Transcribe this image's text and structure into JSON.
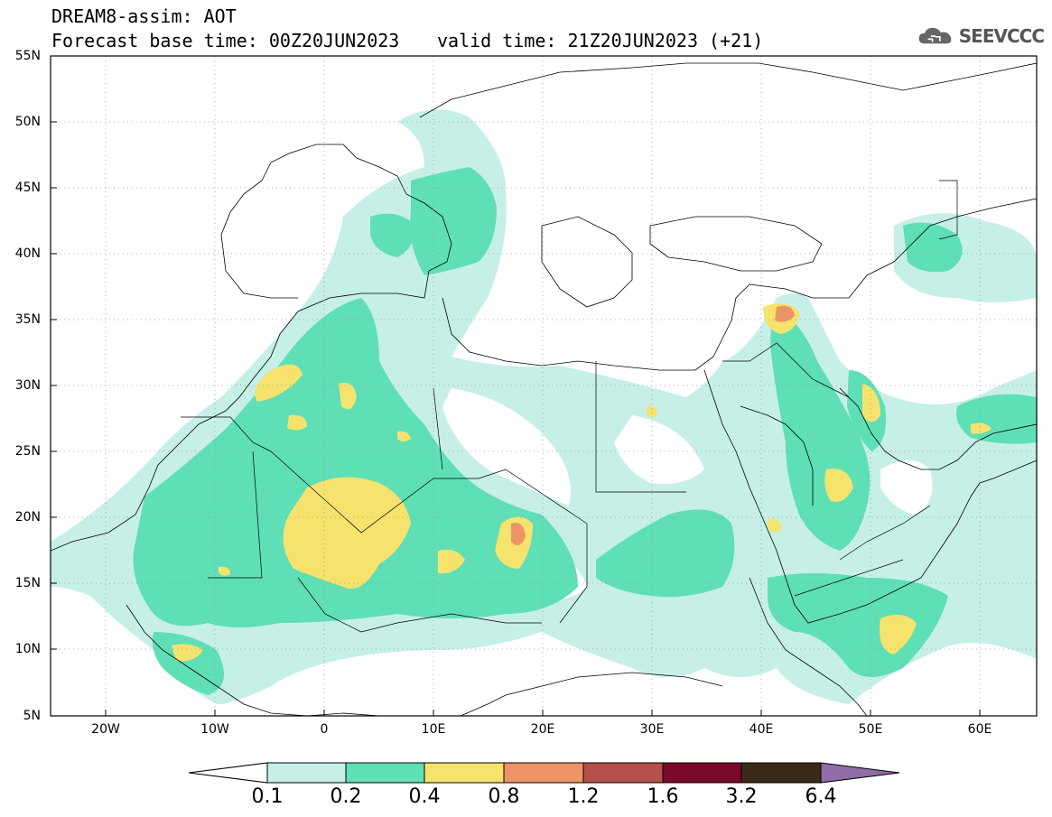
{
  "title": {
    "line1": "DREAM8-assim: AOT",
    "line2": "Forecast base time: 00Z20JUN2023",
    "valid": "valid time: 21Z20JUN2023 (+21)"
  },
  "logo": {
    "text": "SEEVCCC",
    "icon": "cloud-icon"
  },
  "axes": {
    "lat_labels": [
      "55N",
      "50N",
      "45N",
      "40N",
      "35N",
      "30N",
      "25N",
      "20N",
      "15N",
      "10N",
      "5N"
    ],
    "lon_labels": [
      "20W",
      "10W",
      "0",
      "10E",
      "20E",
      "30E",
      "40E",
      "50E",
      "60E"
    ]
  },
  "legend": {
    "labels": [
      "0.1",
      "0.2",
      "0.4",
      "0.8",
      "1.2",
      "1.6",
      "3.2",
      "6.4"
    ],
    "colors": [
      "#c6efe7",
      "#5fdfb5",
      "#f5e36e",
      "#ec9466",
      "#b4514a",
      "#7b0a2a",
      "#3a2a17",
      "#8f6da6"
    ]
  },
  "colors": {
    "coast": "#000000",
    "grid": "#9a9a9a"
  }
}
